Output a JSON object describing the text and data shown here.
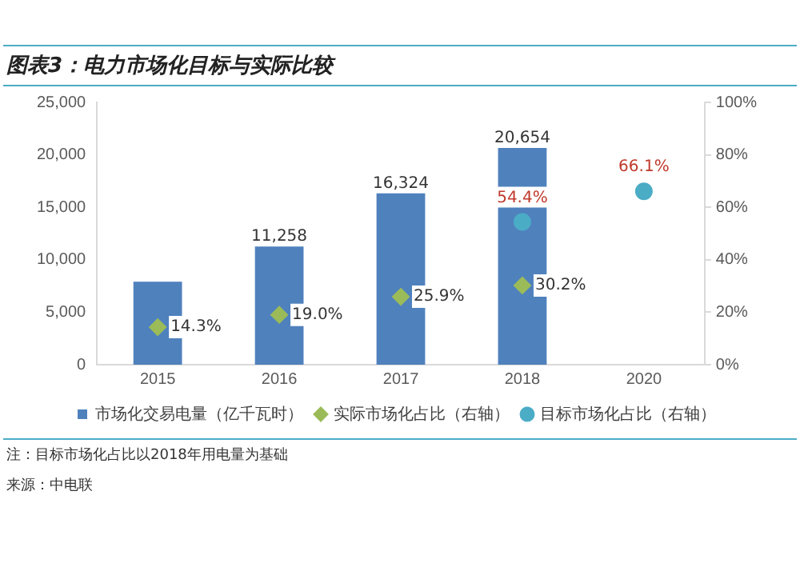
{
  "chart_data": {
    "type": "bar",
    "title": "图表3：电力市场化目标与实际比较",
    "categories": [
      "2015",
      "2016",
      "2017",
      "2018",
      "2020"
    ],
    "series": [
      {
        "name": "市场化交易电量（亿千瓦时）",
        "color": "#4f81bd",
        "values": [
          7900,
          11258,
          16324,
          20654,
          null
        ],
        "value_labels": [
          null,
          "11,258",
          "16,324",
          "20,654",
          null
        ]
      },
      {
        "name": "实际市场化占比（右轴）",
        "type": "scatter",
        "axis": "y2",
        "marker": "diamond",
        "color": "#9bbb59",
        "values": [
          14.3,
          19.0,
          25.9,
          30.2,
          null
        ],
        "value_labels": [
          "14.3%",
          "19.0%",
          "25.9%",
          "30.2%",
          null
        ]
      },
      {
        "name": "目标市场化占比（右轴）",
        "type": "scatter",
        "axis": "y2",
        "marker": "circle",
        "color": "#4bacc6",
        "values": [
          null,
          null,
          null,
          54.4,
          66.1
        ],
        "value_labels": [
          null,
          null,
          null,
          "54.4%",
          "66.1%"
        ]
      }
    ],
    "ylim": [
      0,
      25000
    ],
    "yticks": [
      {
        "value": 0,
        "label": "0"
      },
      {
        "value": 5000,
        "label": "5,000"
      },
      {
        "value": 10000,
        "label": "10,000"
      },
      {
        "value": 15000,
        "label": "15,000"
      },
      {
        "value": 20000,
        "label": "20,000"
      },
      {
        "value": 25000,
        "label": "25,000"
      }
    ],
    "y2lim": [
      0,
      100
    ],
    "y2ticks": [
      {
        "value": 0,
        "label": "0%"
      },
      {
        "value": 20,
        "label": "20%"
      },
      {
        "value": 40,
        "label": "40%"
      },
      {
        "value": 60,
        "label": "60%"
      },
      {
        "value": 80,
        "label": "80%"
      },
      {
        "value": 100,
        "label": "100%"
      }
    ],
    "grid": false,
    "legend": "bottom",
    "annotations": [
      "注：目标市场化占比以2018年用电量为基础",
      "来源：中电联"
    ]
  }
}
